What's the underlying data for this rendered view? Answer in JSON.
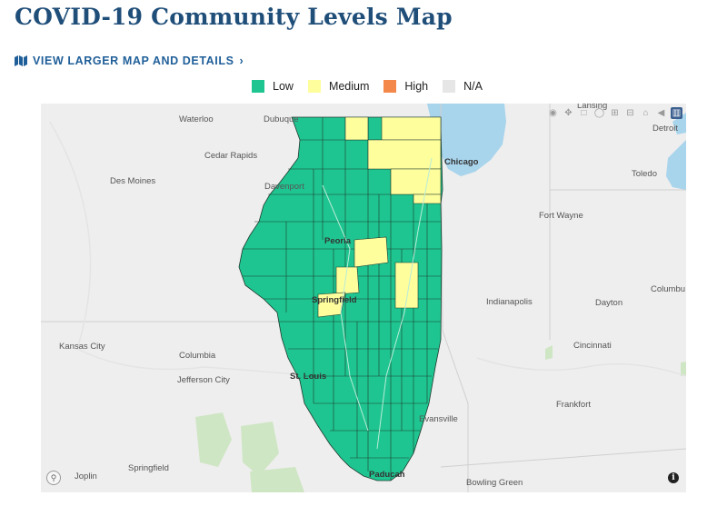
{
  "page": {
    "title": "COVID-19 Community Levels Map",
    "larger_map_link": "VIEW LARGER MAP AND DETAILS"
  },
  "legend": [
    {
      "label": "Low",
      "color": "#1fc590"
    },
    {
      "label": "Medium",
      "color": "#fefe9c"
    },
    {
      "label": "High",
      "color": "#f4874a"
    },
    {
      "label": "N/A",
      "color": "#e6e6e6"
    }
  ],
  "map": {
    "cities": {
      "waterloo": "Waterloo",
      "dubuque": "Dubuque",
      "cedar_rapids": "Cedar Rapids",
      "des_moines": "Des Moines",
      "davenport": "Davenport",
      "peoria": "Peoria",
      "springfield_il": "Springfield",
      "kansas_city": "Kansas City",
      "columbia": "Columbia",
      "jefferson_city": "Jefferson City",
      "st_louis": "St. Louis",
      "joplin": "Joplin",
      "springfield_mo": "Springfield",
      "paducah": "Paducah",
      "evansville": "Evansville",
      "bowling_green": "Bowling Green",
      "chicago": "Chicago",
      "lansing": "Lansing",
      "detroit": "Detroit",
      "toledo": "Toledo",
      "fort_wayne": "Fort Wayne",
      "indianapolis": "Indianapolis",
      "dayton": "Dayton",
      "columbus": "Columbu",
      "cincinnati": "Cincinnati",
      "frankfort": "Frankfort"
    },
    "toolbar_icons": [
      "camera-icon",
      "pan-icon",
      "box-select-icon",
      "lasso-icon",
      "zoom-in-icon",
      "zoom-out-icon",
      "home-icon",
      "back-icon",
      "bar-chart-icon"
    ],
    "info_icon": "i"
  }
}
